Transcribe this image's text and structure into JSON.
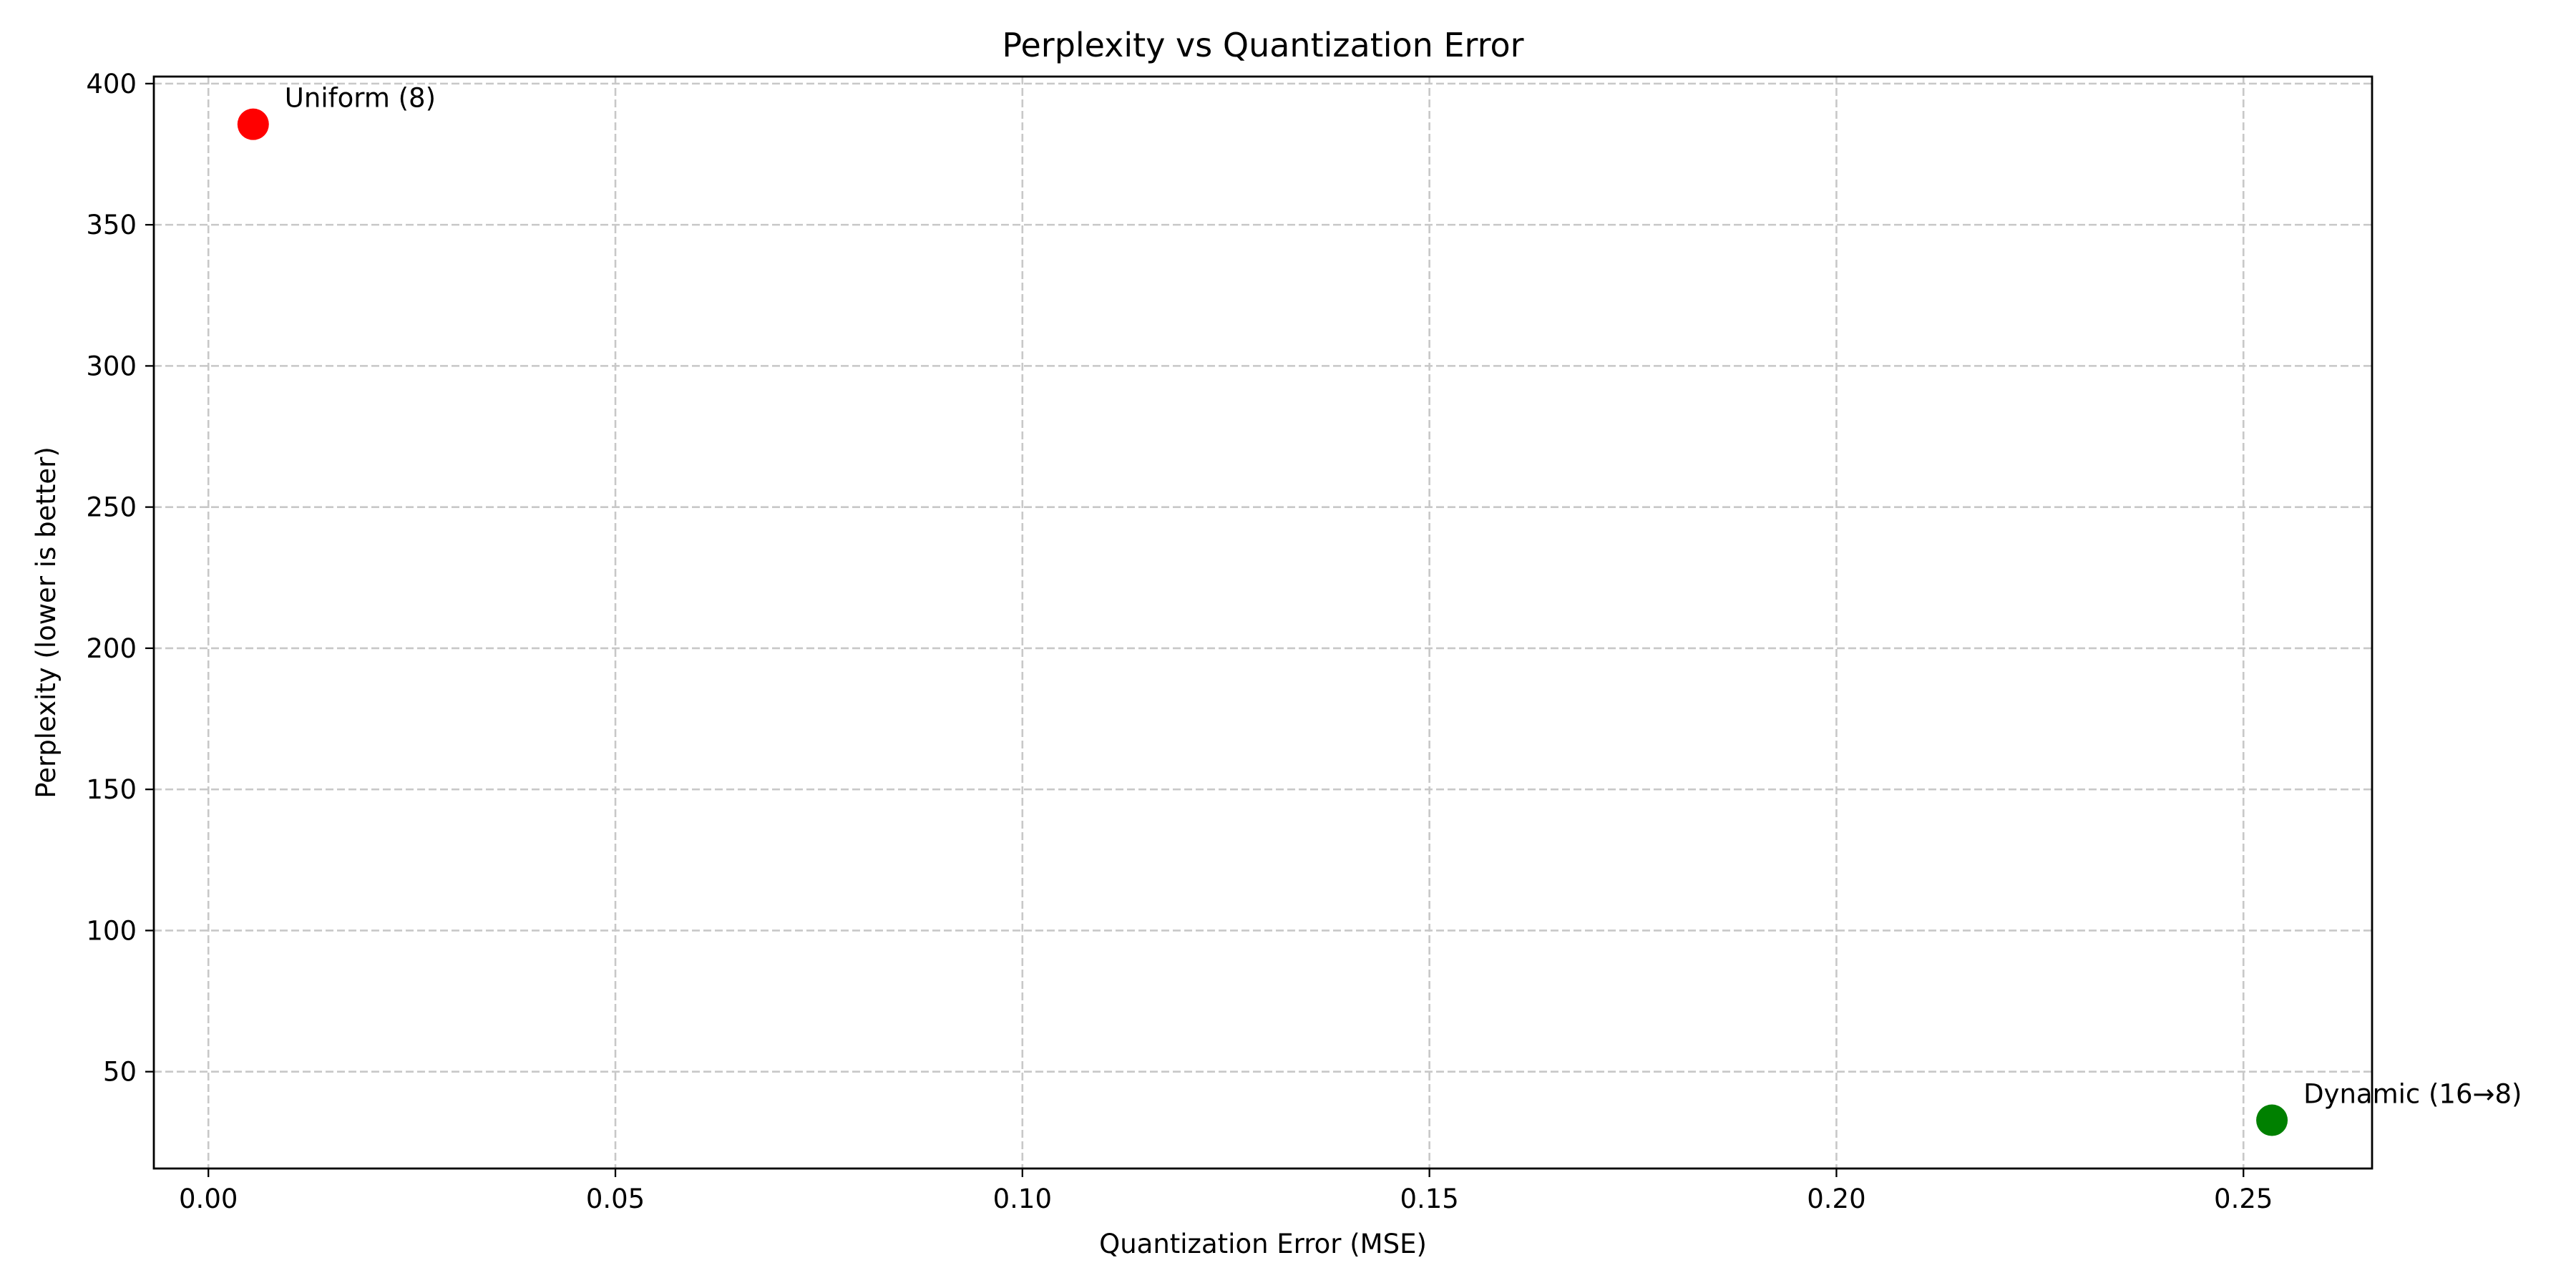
{
  "chart_data": {
    "type": "scatter",
    "title": "Perplexity vs Quantization Error",
    "xlabel": "Quantization Error (MSE)",
    "ylabel": "Perplexity (lower is better)",
    "xlim": [
      -0.0067,
      0.2658
    ],
    "ylim": [
      15.7,
      402.5
    ],
    "x_ticks": [
      0.0,
      0.05,
      0.1,
      0.15,
      0.2,
      0.25
    ],
    "x_tick_labels": [
      "0.00",
      "0.05",
      "0.10",
      "0.15",
      "0.20",
      "0.25"
    ],
    "y_ticks": [
      50,
      100,
      150,
      200,
      250,
      300,
      350,
      400
    ],
    "y_tick_labels": [
      "50",
      "100",
      "150",
      "200",
      "250",
      "300",
      "350",
      "400"
    ],
    "grid": true,
    "legend": "none",
    "points": [
      {
        "label": "Uniform (8)",
        "x": 0.0055,
        "y": 385.6,
        "color": "#ff0000"
      },
      {
        "label": "Dynamic (16→8)",
        "x": 0.2535,
        "y": 32.8,
        "color": "#008000"
      }
    ]
  }
}
